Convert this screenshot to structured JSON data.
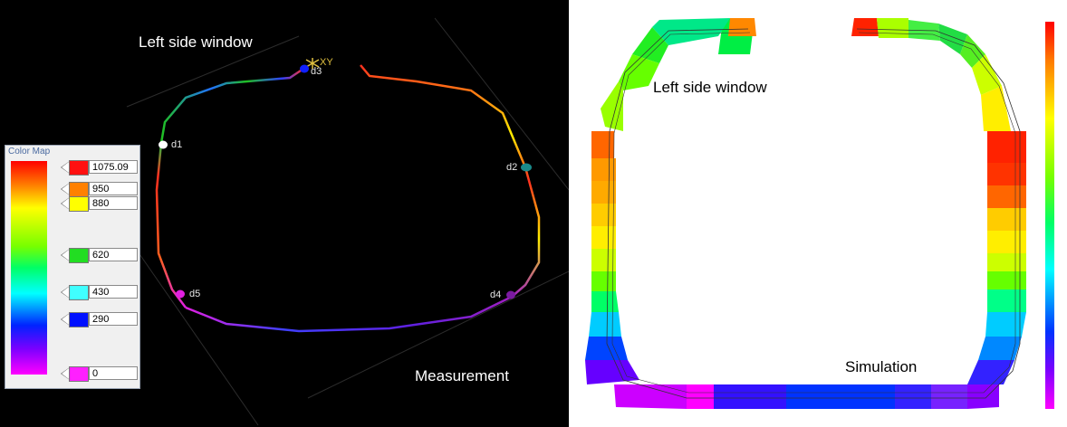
{
  "measurement": {
    "window_label": "Left side window",
    "caption": "Measurement",
    "axis_label": "XY",
    "points": [
      {
        "id": "d1",
        "color": "#ffffff"
      },
      {
        "id": "d2",
        "color": "#1a8a8a"
      },
      {
        "id": "d3",
        "color": "#1020ff"
      },
      {
        "id": "d4",
        "color": "#7a1aa0"
      },
      {
        "id": "d5",
        "color": "#e020e0"
      }
    ]
  },
  "color_map": {
    "title": "Color Map",
    "entries": [
      {
        "value": "1075.09",
        "color": "#ff1010"
      },
      {
        "value": "950",
        "color": "#ff8000"
      },
      {
        "value": "880",
        "color": "#ffff00"
      },
      {
        "value": "620",
        "color": "#22dd22"
      },
      {
        "value": "430",
        "color": "#40ffff"
      },
      {
        "value": "290",
        "color": "#0010ff"
      },
      {
        "value": "0",
        "color": "#ff20ff"
      }
    ]
  },
  "simulation": {
    "window_label": "Left side window",
    "caption": "Simulation"
  }
}
